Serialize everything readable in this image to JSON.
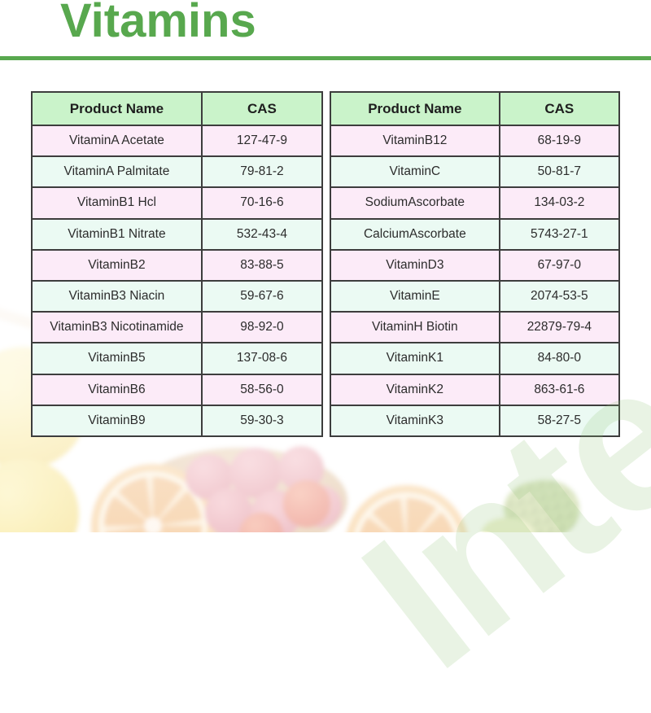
{
  "title": "Vitamins",
  "watermark": "Inter",
  "colors": {
    "accent_green": "#58a84e",
    "table_header_bg": "#caf3ca",
    "row_pink": "#fcebf8",
    "row_mint": "#ebfaf3",
    "table_border": "#3d3d3d"
  },
  "tables": [
    {
      "headers": [
        "Product Name",
        "CAS"
      ],
      "rows": [
        [
          "VitaminA Acetate",
          "127-47-9"
        ],
        [
          "VitaminA Palmitate",
          "79-81-2"
        ],
        [
          "VitaminB1 Hcl",
          "70-16-6"
        ],
        [
          "VitaminB1 Nitrate",
          "532-43-4"
        ],
        [
          "VitaminB2",
          "83-88-5"
        ],
        [
          "VitaminB3 Niacin",
          "59-67-6"
        ],
        [
          "VitaminB3 Nicotinamide",
          "98-92-0"
        ],
        [
          "VitaminB5",
          "137-08-6"
        ],
        [
          "VitaminB6",
          "58-56-0"
        ],
        [
          "VitaminB9",
          "59-30-3"
        ]
      ]
    },
    {
      "headers": [
        "Product Name",
        "CAS"
      ],
      "rows": [
        [
          "VitaminB12",
          "68-19-9"
        ],
        [
          "VitaminC",
          "50-81-7"
        ],
        [
          "SodiumAscorbate",
          "134-03-2"
        ],
        [
          "CalciumAscorbate",
          "5743-27-1"
        ],
        [
          "VitaminD3",
          "67-97-0"
        ],
        [
          "VitaminE",
          "2074-53-5"
        ],
        [
          "VitaminH Biotin",
          "22879-79-4"
        ],
        [
          "VitaminK1",
          "84-80-0"
        ],
        [
          "VitaminK2",
          "863-61-6"
        ],
        [
          "VitaminK3",
          "58-27-5"
        ]
      ]
    }
  ]
}
